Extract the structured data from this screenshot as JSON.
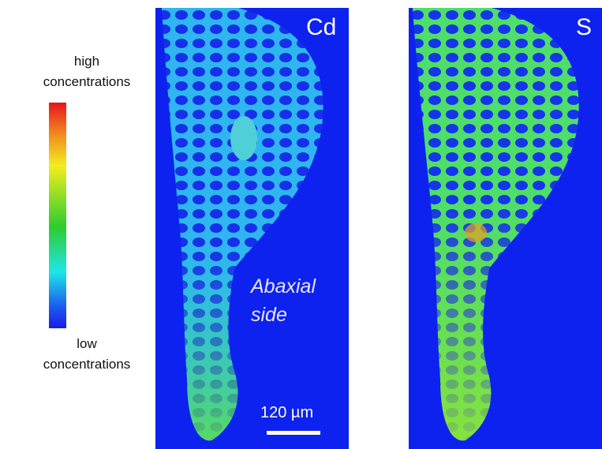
{
  "colorbar": {
    "high_label": "high concentrations",
    "low_label": "low concentrations"
  },
  "panels": [
    {
      "label": "Cd"
    },
    {
      "label": "S"
    }
  ],
  "annotation": "Abaxial side",
  "scale_bar": {
    "label": "120 µm"
  }
}
